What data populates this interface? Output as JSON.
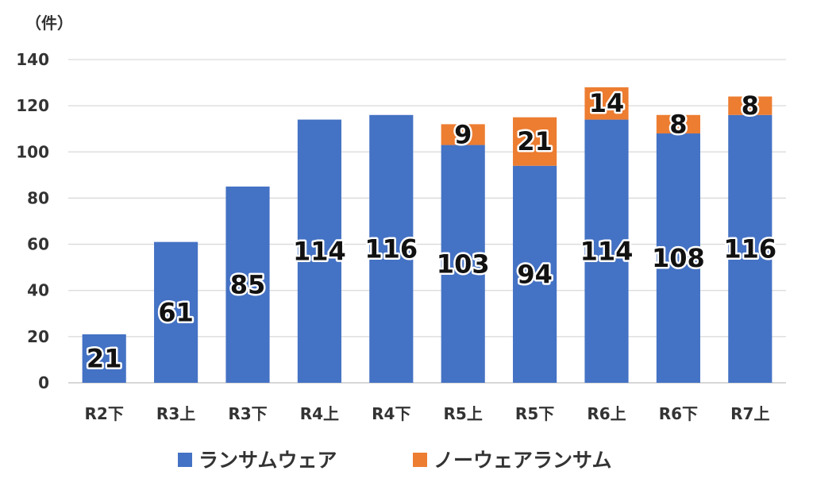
{
  "chart_data": {
    "type": "bar",
    "stacked": true,
    "unit_label": "（件）",
    "categories": [
      "R2下",
      "R3上",
      "R3下",
      "R4上",
      "R4下",
      "R5上",
      "R5下",
      "R6上",
      "R6下",
      "R7上"
    ],
    "series": [
      {
        "name": "ランサムウェア",
        "color": "#4472C4",
        "values": [
          21,
          61,
          85,
          114,
          116,
          103,
          94,
          114,
          108,
          116
        ]
      },
      {
        "name": "ノーウェアランサム",
        "color": "#ED7D31",
        "values": [
          0,
          0,
          0,
          0,
          0,
          9,
          21,
          14,
          8,
          8
        ]
      }
    ],
    "ylim": [
      0,
      140
    ],
    "yticks": [
      0,
      20,
      40,
      60,
      80,
      100,
      120,
      140
    ],
    "grid": true,
    "legend_position": "bottom"
  }
}
